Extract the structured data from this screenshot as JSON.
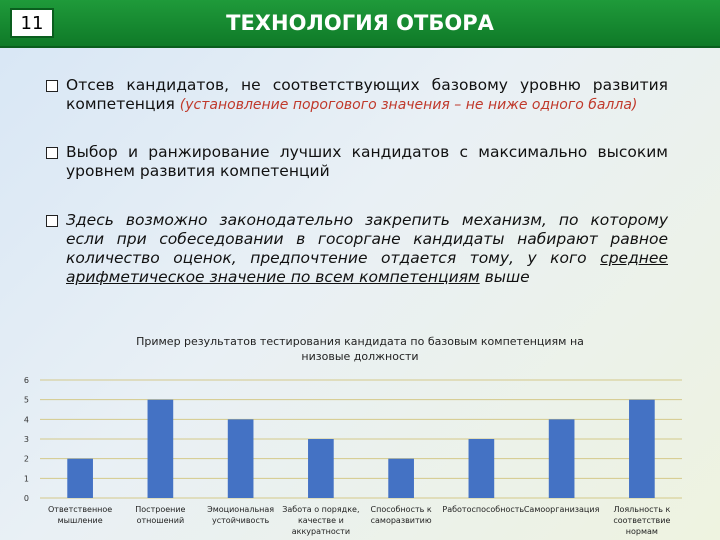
{
  "header": {
    "number": "11",
    "title": "ТЕХНОЛОГИЯ ОТБОРА"
  },
  "bullets": [
    {
      "text": "Отсев кандидатов, не соответствующих базовому уровню развития компетенция",
      "note": "(установление порогового значения – не ниже одного балла)"
    },
    {
      "text": "Выбор и ранжирование лучших кандидатов с максимально высоким уровнем развития компетенций"
    },
    {
      "text": "Здесь возможно законодательно закрепить механизм, по которому если при собеседовании в госоргане кандидаты набирают равное количество оценок, предпочтение отдается тому, у кого",
      "underlined": "среднее арифметическое значение по всем компетенциям",
      "tail": "выше"
    }
  ],
  "chart_data": {
    "type": "bar",
    "title": "Пример результатов тестирования кандидата по базовым компетенциям на низовые должности",
    "categories": [
      "Ответственное мышление",
      "Построение отношений",
      "Эмоциональная устойчивость",
      "Забота о порядке, качестве и аккуратности",
      "Способность к саморазвитию",
      "Работоспособность",
      "Самоорганизация",
      "Лояльность к соответствие нормам"
    ],
    "values": [
      2,
      5,
      4,
      3,
      2,
      3,
      4,
      5
    ],
    "color": "#4472c4",
    "ylim": [
      0,
      6
    ],
    "yticks": [
      0,
      1,
      2,
      3,
      4,
      5,
      6
    ],
    "grid": true
  }
}
